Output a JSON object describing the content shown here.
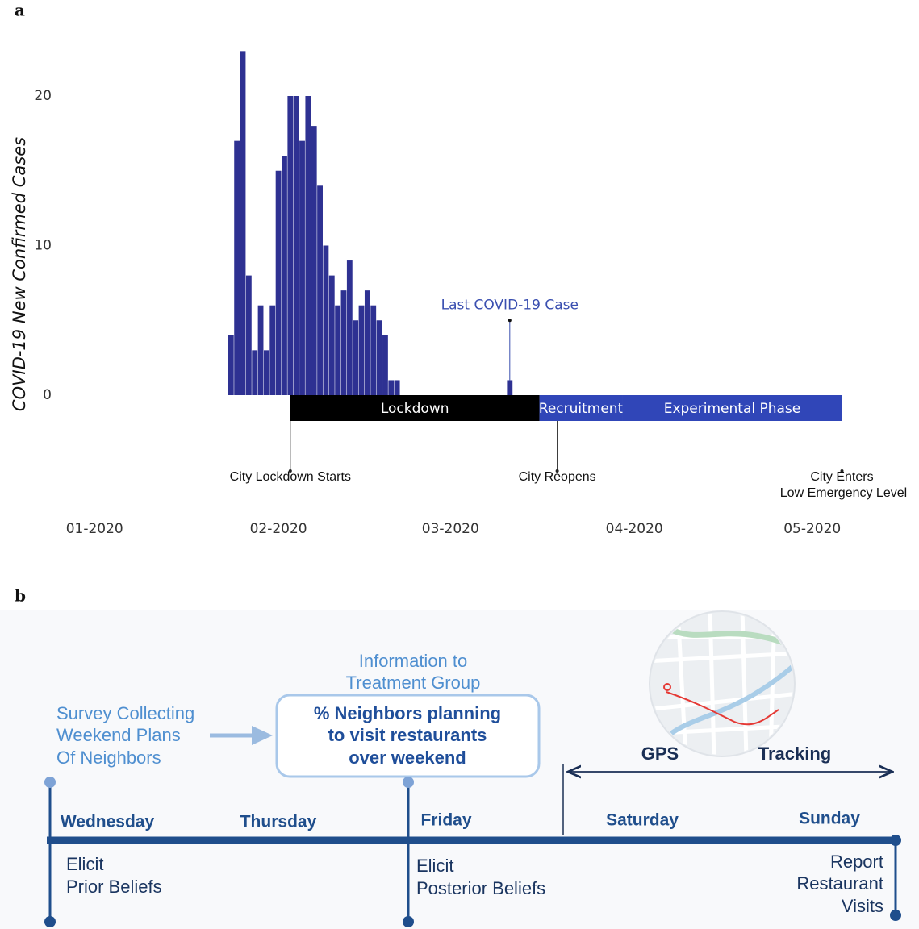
{
  "panel_labels": [
    "a",
    "b"
  ],
  "chart_data": {
    "type": "bar",
    "ylabel": "COVID-19 New Confirmed Cases",
    "x": [
      23,
      24,
      25,
      26,
      27,
      28,
      29,
      30,
      31,
      32,
      33,
      34,
      35,
      36,
      37,
      38,
      39,
      40,
      41,
      42,
      43,
      44,
      45,
      46,
      47,
      48,
      49,
      50,
      51,
      70
    ],
    "values": [
      4,
      17,
      23,
      8,
      3,
      6,
      3,
      6,
      15,
      16,
      20,
      20,
      17,
      20,
      18,
      14,
      10,
      8,
      6,
      7,
      9,
      5,
      6,
      7,
      6,
      5,
      4,
      1,
      1,
      1
    ],
    "color": "#2e3192",
    "xlim": [
      -12,
      136
    ],
    "xticks": [
      {
        "value": 0,
        "label": "01-2020"
      },
      {
        "value": 31,
        "label": "02-2020"
      },
      {
        "value": 60,
        "label": "03-2020"
      },
      {
        "value": 91,
        "label": "04-2020"
      },
      {
        "value": 121,
        "label": "05-2020"
      }
    ],
    "ylim": [
      0,
      23
    ],
    "yticks": [
      0,
      10,
      20
    ],
    "grid": false,
    "annotations": [
      {
        "text": "Last COVID-19 Case",
        "x": 70,
        "y": 5,
        "color": "#3a4fb0"
      }
    ],
    "periods": [
      {
        "name": "Lockdown",
        "start": 33,
        "end": 75,
        "color": "#000000"
      },
      {
        "name": "Recruitment",
        "start": 75,
        "end": 89,
        "color": "#3046b8"
      },
      {
        "name": "Experimental Phase",
        "start": 89,
        "end": 126,
        "color": "#3046b8"
      }
    ],
    "events": [
      {
        "label": [
          "City Lockdown Starts"
        ],
        "x": 33
      },
      {
        "label": [
          "City Reopens"
        ],
        "x": 78
      },
      {
        "label": [
          "City Enters",
          "Low Emergency Level"
        ],
        "x": 126
      }
    ]
  },
  "diagram": {
    "info": [
      "Information to",
      "Treatment Group"
    ],
    "survey": [
      "Survey Collecting",
      "Weekend Plans",
      "Of Neighbors"
    ],
    "box": [
      "% Neighbors planning",
      "to visit restaurants",
      "over weekend"
    ],
    "gps": [
      "GPS",
      "Tracking"
    ],
    "days": [
      "Wednesday",
      "Thursday",
      "Friday",
      "Saturday",
      "Sunday"
    ],
    "wednesday_note": [
      "Elicit",
      "Prior Beliefs"
    ],
    "friday_note": [
      "Elicit",
      "Posterior Beliefs"
    ],
    "sunday_note": [
      "Report",
      "Restaurant",
      "Visits"
    ]
  }
}
